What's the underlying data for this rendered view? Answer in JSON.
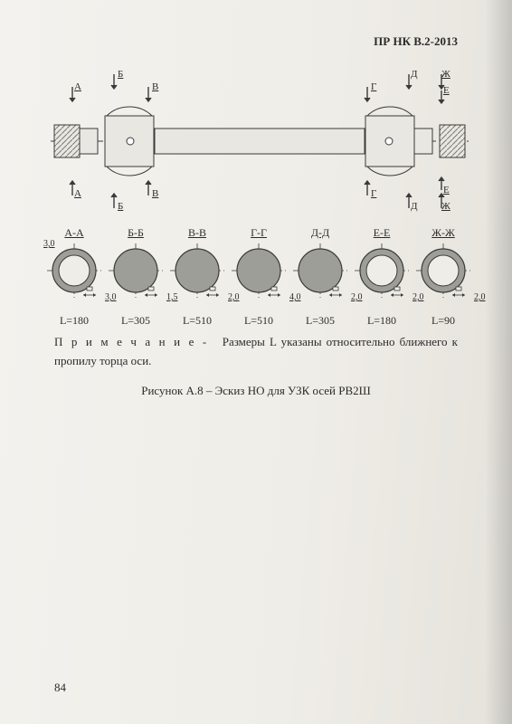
{
  "header": {
    "code": "ПР НК В.2-2013"
  },
  "axle": {
    "top_marks": [
      "А",
      "Б",
      "В",
      "Г",
      "Д",
      "Ж",
      "Е"
    ],
    "bottom_marks": [
      "А",
      "Б",
      "В",
      "Г",
      "Д",
      "Ж",
      "Е"
    ],
    "shaft_fill": "#d6d6d0",
    "line_color": "#3a3a3a"
  },
  "cross_sections": {
    "fill": "#9e9e98",
    "stroke": "#3a3a3a",
    "items": [
      {
        "label": "А-А",
        "dim_top": "3,0",
        "dim_side": "3,0",
        "len": "L=180",
        "ring": true
      },
      {
        "label": "Б-Б",
        "dim_side": "1,5",
        "len": "L=305",
        "ring": false
      },
      {
        "label": "В-В",
        "dim_side": "2,0",
        "len": "L=510",
        "ring": false
      },
      {
        "label": "Г-Г",
        "dim_side": "4,0",
        "len": "L=510",
        "ring": false
      },
      {
        "label": "Д-Д",
        "dim_side": "2,0",
        "len": "L=305",
        "ring": false
      },
      {
        "label": "Е-Е",
        "dim_side": "2,0",
        "len": "L=180",
        "ring": true
      },
      {
        "label": "Ж-Ж",
        "dim_side": "2,0",
        "len": "L=90",
        "ring": true
      }
    ]
  },
  "note": {
    "lead": "П р и м е ч а н и е -",
    "text": "Размеры L указаны относительно ближнего к пропилу торца оси."
  },
  "caption": "Рисунок А.8 – Эскиз НО для УЗК осей РВ2Ш",
  "page_number": "84"
}
